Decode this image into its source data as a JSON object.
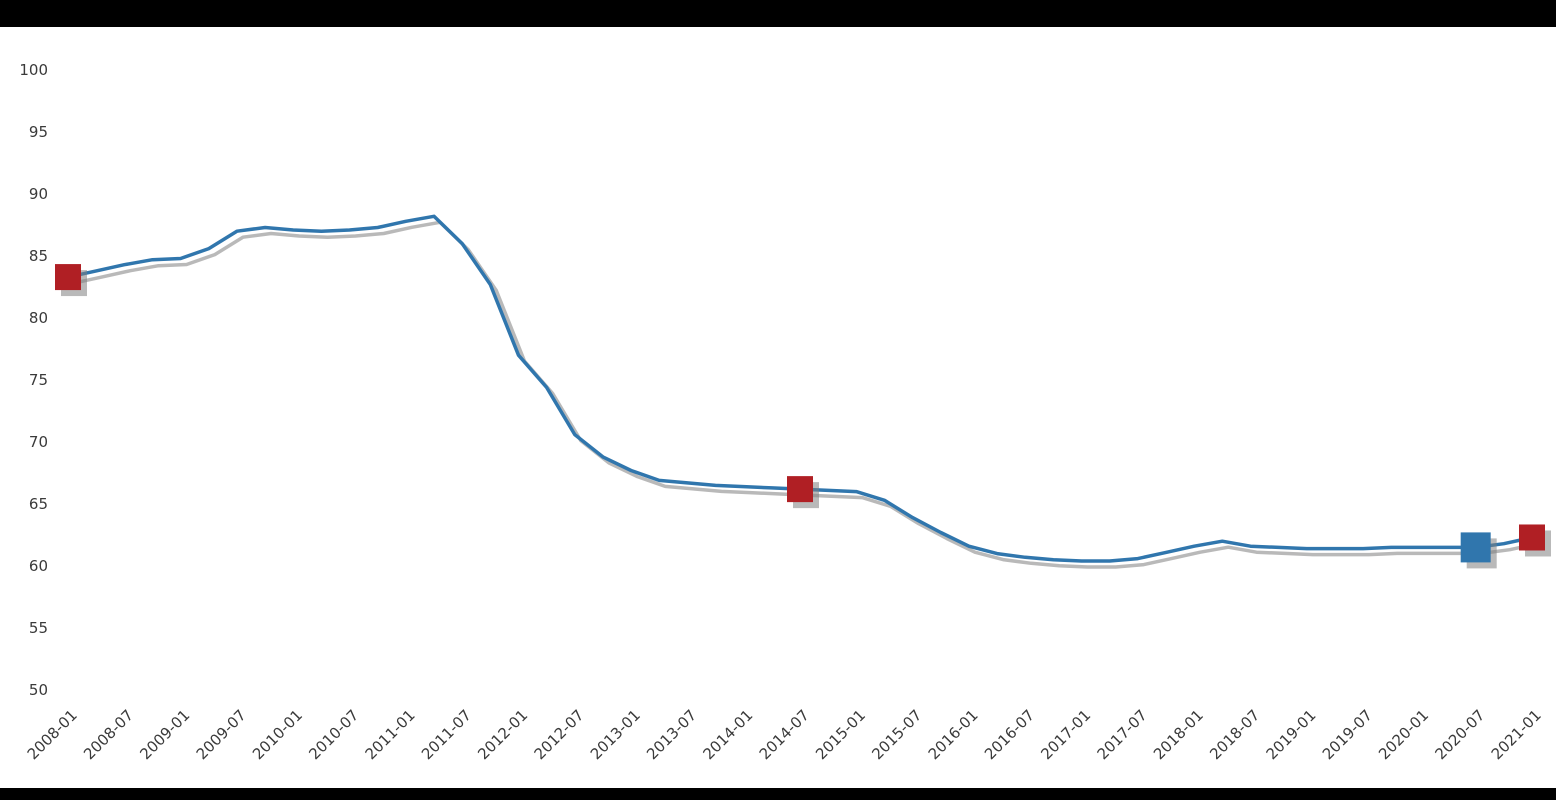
{
  "window": {
    "title": "",
    "top_bar": "",
    "bottom_bar": ""
  },
  "colors": {
    "background": "#ffffff",
    "top_bar": "#000000",
    "bottom_bar": "#000000",
    "line": "#3076ad",
    "marker_red": "#b01f24",
    "marker_blue": "#3076ad",
    "tick_text": "#3a3a3a",
    "shadow": "#808080"
  },
  "chart_data": {
    "type": "line",
    "title": "",
    "xlabel": "",
    "ylabel": "",
    "grid": false,
    "legend": false,
    "ylim": [
      50,
      100
    ],
    "y_ticks": [
      100,
      95,
      90,
      85,
      80,
      75,
      70,
      65,
      60,
      55,
      50
    ],
    "x_tick_labels": [
      "2008-01",
      "2008-07",
      "2009-01",
      "2009-07",
      "2010-01",
      "2010-07",
      "2011-01",
      "2011-07",
      "2012-01",
      "2012-07",
      "2013-01",
      "2013-07",
      "2014-01",
      "2014-07",
      "2015-01",
      "2015-07",
      "2016-01",
      "2016-07",
      "2017-01",
      "2017-07",
      "2018-01",
      "2018-07",
      "2019-01",
      "2019-07",
      "2020-01",
      "2020-07",
      "2021-01"
    ],
    "x_frequency": "quarterly",
    "series": [
      {
        "name": "series-1",
        "values": [
          83.3,
          83.8,
          84.3,
          84.7,
          84.8,
          85.6,
          87.0,
          87.3,
          87.1,
          87.0,
          87.1,
          87.3,
          87.8,
          88.2,
          86.0,
          82.7,
          77.0,
          74.4,
          70.6,
          68.8,
          67.7,
          66.9,
          66.7,
          66.5,
          66.4,
          66.3,
          66.2,
          66.1,
          66.0,
          65.3,
          63.9,
          62.7,
          61.6,
          61.0,
          60.7,
          60.5,
          60.4,
          60.4,
          60.6,
          61.1,
          61.6,
          62.0,
          61.6,
          61.5,
          61.4,
          61.4,
          61.4,
          61.5,
          61.5,
          61.5,
          61.5,
          61.8,
          62.3
        ]
      }
    ],
    "markers": [
      {
        "index": 0,
        "shape": "square",
        "color": "#b01f24",
        "size": 26,
        "label": "red-marker-start"
      },
      {
        "index": 26,
        "shape": "square",
        "color": "#b01f24",
        "size": 26,
        "label": "red-marker-middle"
      },
      {
        "index": 50,
        "shape": "square",
        "color": "#3076ad",
        "size": 30,
        "label": "blue-marker-near-end"
      },
      {
        "index": 52,
        "shape": "square",
        "color": "#b01f24",
        "size": 26,
        "label": "red-marker-end"
      }
    ]
  }
}
